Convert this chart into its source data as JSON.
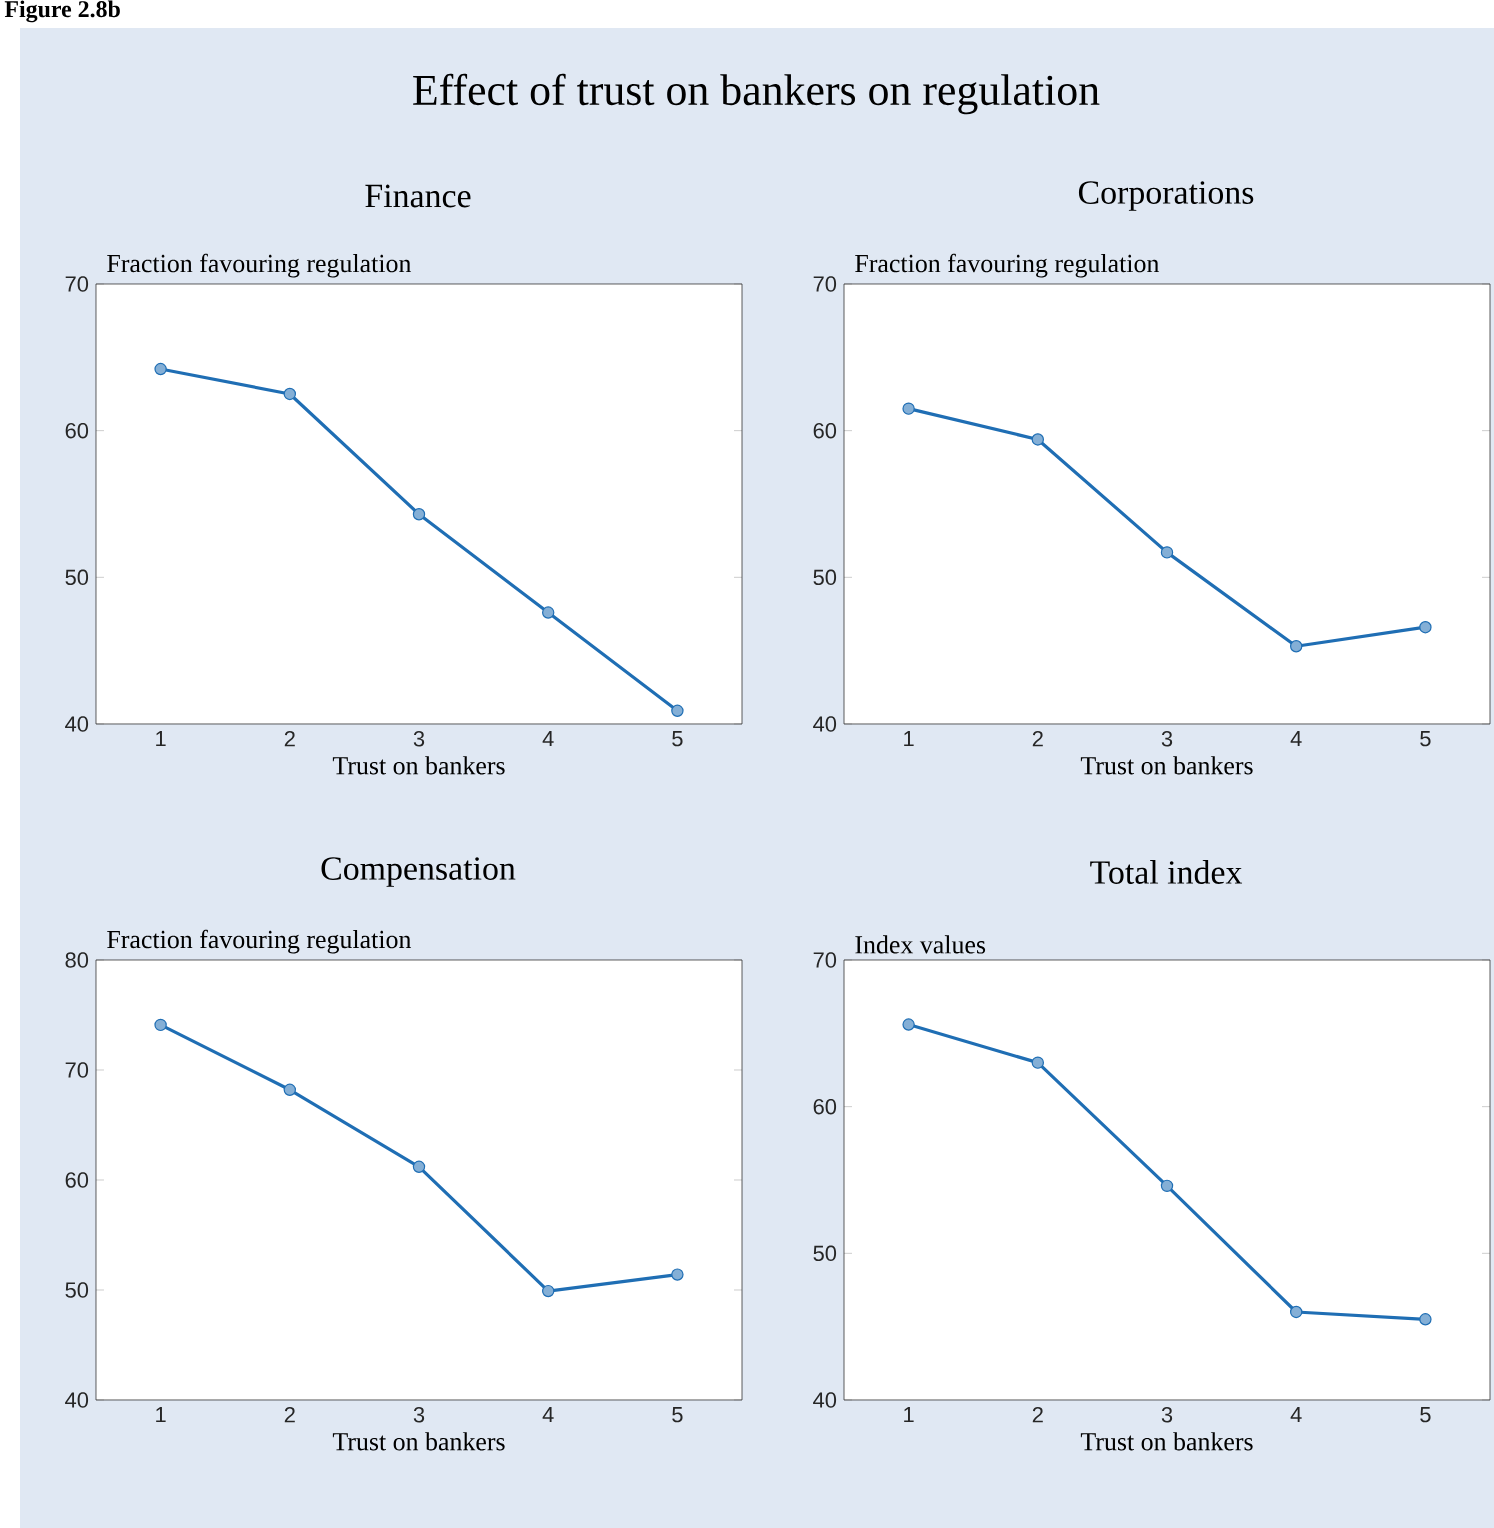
{
  "chart_data": [
    {
      "type": "other",
      "title": "Effect of trust on bankers on regulation",
      "annotations": [
        "Figure 2.8b"
      ]
    },
    {
      "type": "line",
      "title": "Finance",
      "ylabel": "Fraction favouring regulation",
      "xlabel": "Trust on bankers",
      "categories": [
        "1",
        "2",
        "3",
        "4",
        "5"
      ],
      "values": [
        64.2,
        62.5,
        54.3,
        47.6,
        40.9
      ],
      "color": "#1f6eb4",
      "ylim": [
        40,
        70
      ],
      "yticks": [
        40,
        50,
        60,
        70
      ],
      "marker": "circle",
      "grid": false
    },
    {
      "type": "line",
      "title": "Corporations",
      "ylabel": "Fraction favouring regulation",
      "xlabel": "Trust on bankers",
      "categories": [
        "1",
        "2",
        "3",
        "4",
        "5"
      ],
      "values": [
        61.5,
        59.4,
        51.7,
        45.3,
        46.6
      ],
      "color": "#1f6eb4",
      "ylim": [
        40,
        70
      ],
      "yticks": [
        40,
        50,
        60,
        70
      ],
      "marker": "circle",
      "grid": false
    },
    {
      "type": "line",
      "title": "Compensation",
      "ylabel": "Fraction favouring regulation",
      "xlabel": "Trust on bankers",
      "categories": [
        "1",
        "2",
        "3",
        "4",
        "5"
      ],
      "values": [
        74.1,
        68.2,
        61.2,
        49.9,
        51.4
      ],
      "color": "#1f6eb4",
      "ylim": [
        40,
        80
      ],
      "yticks": [
        40,
        50,
        60,
        70,
        80
      ],
      "marker": "circle",
      "grid": false
    },
    {
      "type": "line",
      "title": "Total index",
      "ylabel": "Index values",
      "xlabel": "Trust on bankers",
      "categories": [
        "1",
        "2",
        "3",
        "4",
        "5"
      ],
      "values": [
        65.6,
        63.0,
        54.6,
        46.0,
        45.5
      ],
      "color": "#1f6eb4",
      "ylim": [
        40,
        70
      ],
      "yticks": [
        40,
        50,
        60,
        70
      ],
      "marker": "circle",
      "grid": false
    }
  ]
}
